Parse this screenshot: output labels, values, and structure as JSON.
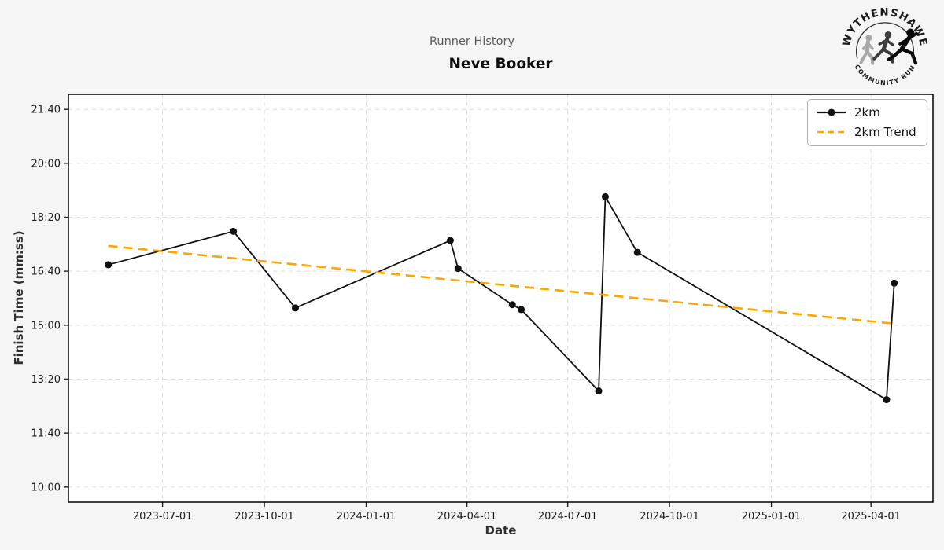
{
  "header": {
    "suptitle": "Runner History",
    "title": "Neve Booker"
  },
  "axes": {
    "xlabel": "Date",
    "ylabel": "Finish Time (mm:ss)"
  },
  "logo": {
    "top_text": "WYTHENSHAWE",
    "bottom_text": "COMMUNITY RUN",
    "runner_colors": [
      "#a8a8a8",
      "#3c3c3c",
      "#0a0a0a"
    ],
    "ring_color": "#2b2b2b",
    "text_color": "#1a1a1a"
  },
  "chart_data": {
    "type": "line",
    "title": "Neve Booker",
    "subtitle": "Runner History",
    "xlabel": "Date",
    "ylabel": "Finish Time (mm:ss)",
    "grid": true,
    "legend_position": "upper right",
    "x_ticks": [
      "2023-07-01",
      "2023-10-01",
      "2024-01-01",
      "2024-04-01",
      "2024-07-01",
      "2024-10-01",
      "2025-01-01",
      "2025-04-01"
    ],
    "y_ticks": [
      "10:00",
      "11:40",
      "13:20",
      "15:00",
      "16:40",
      "18:20",
      "20:00",
      "21:40"
    ],
    "xlim": [
      "2023-04-07",
      "2025-05-27"
    ],
    "ylim_seconds": [
      572,
      1328
    ],
    "colors": {
      "line": "#111111",
      "trend": "#FFA500",
      "grid": "#dedede",
      "plot_bg": "#ffffff",
      "fig_bg": "#f5f5f5"
    },
    "series": [
      {
        "name": "2km",
        "color": "#111111",
        "style": "solid",
        "marker": "circle",
        "points": [
          {
            "date": "2023-05-13",
            "time": "16:52"
          },
          {
            "date": "2023-09-03",
            "time": "17:54"
          },
          {
            "date": "2023-10-29",
            "time": "15:32"
          },
          {
            "date": "2024-03-17",
            "time": "17:37"
          },
          {
            "date": "2024-03-24",
            "time": "16:45"
          },
          {
            "date": "2024-05-12",
            "time": "15:38"
          },
          {
            "date": "2024-05-20",
            "time": "15:29"
          },
          {
            "date": "2024-07-29",
            "time": "12:58"
          },
          {
            "date": "2024-08-04",
            "time": "18:58"
          },
          {
            "date": "2024-09-02",
            "time": "17:15"
          },
          {
            "date": "2025-04-15",
            "time": "12:42"
          },
          {
            "date": "2025-04-22",
            "time": "16:18"
          }
        ]
      },
      {
        "name": "2km Trend",
        "color": "#FFA500",
        "style": "dashed",
        "marker": "none",
        "points": [
          {
            "date": "2023-05-13",
            "time": "17:27"
          },
          {
            "date": "2025-04-22",
            "time": "15:03"
          }
        ]
      }
    ]
  }
}
